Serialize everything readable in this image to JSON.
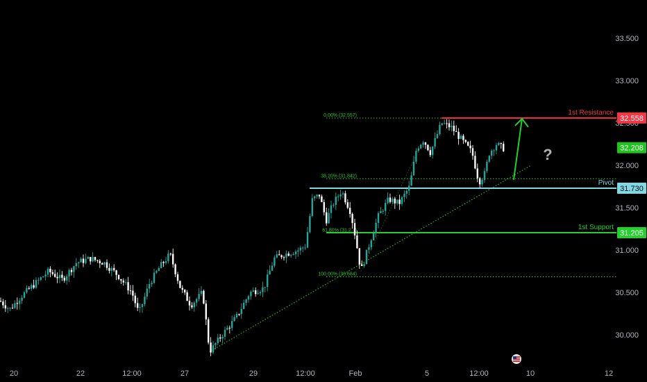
{
  "chart_data": {
    "type": "candlestick",
    "y_axis": {
      "ticks": [
        "33.500",
        "33.000",
        "32.500",
        "32.000",
        "31.500",
        "31.000",
        "30.500",
        "30.000"
      ],
      "tick_values": [
        33.5,
        33.0,
        32.5,
        32.0,
        31.5,
        31.0,
        30.5,
        30.0
      ],
      "range": [
        29.65,
        33.95
      ]
    },
    "x_axis": {
      "ticks": [
        "20",
        "22",
        "12:00",
        "27",
        "29",
        "12:00",
        "Feb",
        "5",
        "12:00",
        "10",
        "12"
      ]
    },
    "price_series": {
      "x_index_range": [
        0,
        740
      ],
      "points": [
        [
          0,
          30.4
        ],
        [
          14,
          30.3
        ],
        [
          30,
          30.45
        ],
        [
          50,
          30.6
        ],
        [
          70,
          30.75
        ],
        [
          90,
          30.65
        ],
        [
          110,
          30.85
        ],
        [
          130,
          30.9
        ],
        [
          150,
          30.85
        ],
        [
          170,
          30.7
        ],
        [
          190,
          30.5
        ],
        [
          200,
          30.25
        ],
        [
          215,
          30.6
        ],
        [
          230,
          30.8
        ],
        [
          245,
          30.95
        ],
        [
          260,
          30.55
        ],
        [
          275,
          30.35
        ],
        [
          292,
          30.5
        ],
        [
          302,
          29.8
        ],
        [
          320,
          30.0
        ],
        [
          340,
          30.2
        ],
        [
          360,
          30.5
        ],
        [
          380,
          30.55
        ],
        [
          395,
          30.9
        ],
        [
          410,
          30.95
        ],
        [
          430,
          31.0
        ],
        [
          440,
          31.05
        ],
        [
          450,
          31.6
        ],
        [
          460,
          31.65
        ],
        [
          470,
          31.35
        ],
        [
          480,
          31.55
        ],
        [
          492,
          31.7
        ],
        [
          505,
          31.45
        ],
        [
          512,
          31.15
        ],
        [
          520,
          30.75
        ],
        [
          535,
          31.15
        ],
        [
          545,
          31.4
        ],
        [
          560,
          31.6
        ],
        [
          575,
          31.55
        ],
        [
          590,
          31.75
        ],
        [
          600,
          32.2
        ],
        [
          610,
          32.3
        ],
        [
          620,
          32.15
        ],
        [
          636,
          32.5
        ],
        [
          650,
          32.45
        ],
        [
          665,
          32.3
        ],
        [
          680,
          32.15
        ],
        [
          690,
          31.8
        ],
        [
          698,
          31.9
        ],
        [
          705,
          32.15
        ],
        [
          715,
          32.25
        ],
        [
          725,
          32.2
        ],
        [
          728,
          32.2
        ]
      ]
    },
    "current_price": "32.208",
    "levels": [
      {
        "name": "1st Resistance",
        "value": "32.558",
        "color": "#f23645"
      },
      {
        "name": "Pivot",
        "value": "31.730",
        "color": "#7fd8e6"
      },
      {
        "name": "1st Support",
        "value": "31.205",
        "color": "#22d12b"
      }
    ],
    "fibonacci": [
      {
        "label": "0.00% (32.557)",
        "value": 32.557
      },
      {
        "label": "38.20% (31.842)",
        "value": 31.842
      },
      {
        "label": "61.80% (31.2...)",
        "value": 31.2
      },
      {
        "label": "100.00% (30.684)",
        "value": 30.684
      }
    ],
    "annotations": {
      "question_mark": "?",
      "trendline_from": [
        302,
        29.8
      ],
      "trendline_to": [
        765,
        32.0
      ],
      "arrow_from": [
        740,
        31.83
      ],
      "arrow_to": [
        752,
        32.55
      ]
    },
    "colors": {
      "up": "#26a69a",
      "down": "#ffffff",
      "fib": "#2ec72e",
      "arrow": "#22d12b",
      "question": "#b0b0b0",
      "trend": "#2ec72e"
    }
  }
}
